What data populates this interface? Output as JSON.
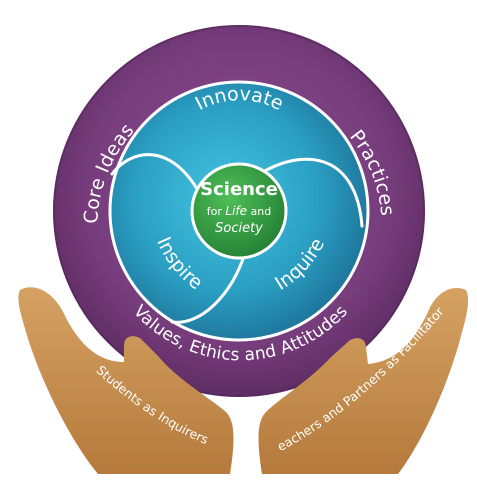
{
  "center": {
    "title": "Science",
    "line1_pre": "for ",
    "line1_em": "Life",
    "line1_post": " and",
    "line2": "Society"
  },
  "inner_ring": {
    "top": "Innovate",
    "left": "Inspire",
    "right": "Inquire"
  },
  "outer_ring": {
    "left": "Core Ideas",
    "right": "Practices",
    "bottom": "Values, Ethics and Attitudes"
  },
  "hands": {
    "left": "Students as Inquirers",
    "right": "Teachers and Partners as Facilitators"
  },
  "colors": {
    "outer_ring": "#7a3f7e",
    "outer_ring_dark": "#5a2a60",
    "inner_ring": "#2aa7c8",
    "inner_ring_dark": "#1c6e93",
    "core": "#2e9b3f",
    "hands": "#c7904d"
  }
}
